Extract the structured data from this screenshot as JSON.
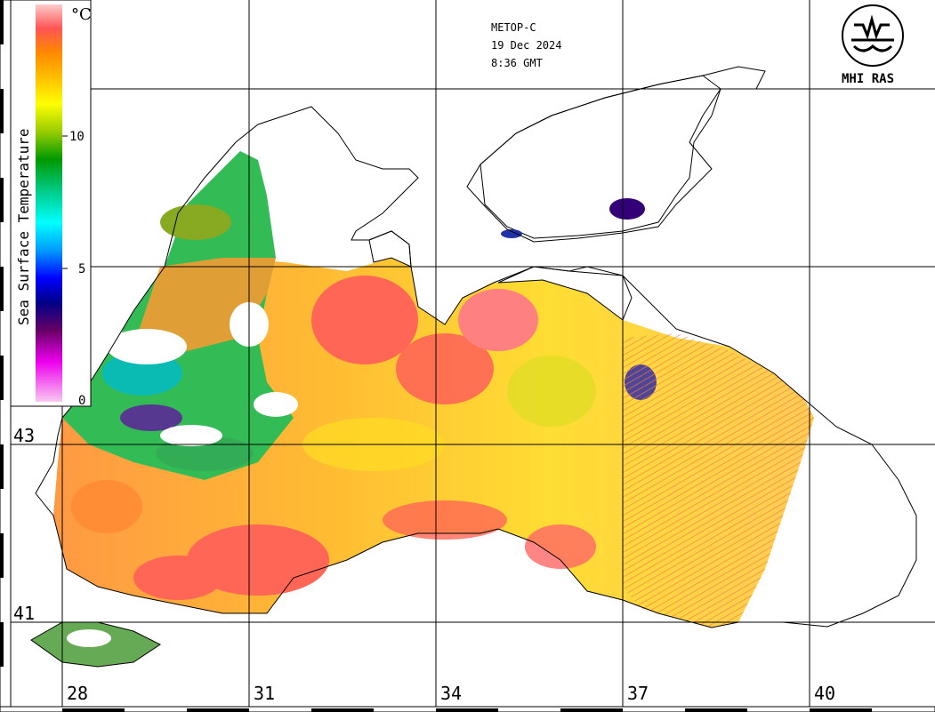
{
  "header": {
    "satellite": "METOP-C",
    "date": "19 Dec 2024",
    "time": "8:36 GMT"
  },
  "logo": {
    "label": "MHI RAS"
  },
  "legend": {
    "unit": "°C",
    "title": "Sea Surface Temperature",
    "ticks": [
      {
        "label": "10",
        "value": 10
      },
      {
        "label": "5",
        "value": 5
      },
      {
        "label": "0",
        "value": 0
      }
    ],
    "range": [
      0,
      15
    ],
    "colors": [
      "#f8c8f0",
      "#ee00ee",
      "#660066",
      "#000088",
      "#0000ff",
      "#0099ff",
      "#00ffff",
      "#00cc88",
      "#009900",
      "#99cc00",
      "#ffff00",
      "#ffbb00",
      "#ff8800",
      "#ff5555",
      "#ffcccc"
    ]
  },
  "axes": {
    "longitude_labels": [
      "28",
      "31",
      "34",
      "37",
      "40"
    ],
    "latitude_labels": [
      "43",
      "41"
    ]
  },
  "colors": {
    "grid": "#000000",
    "coast": "#000000",
    "cloud": "#ffffff",
    "warm": "#ff6655",
    "mid": "#ffcc22"
  }
}
